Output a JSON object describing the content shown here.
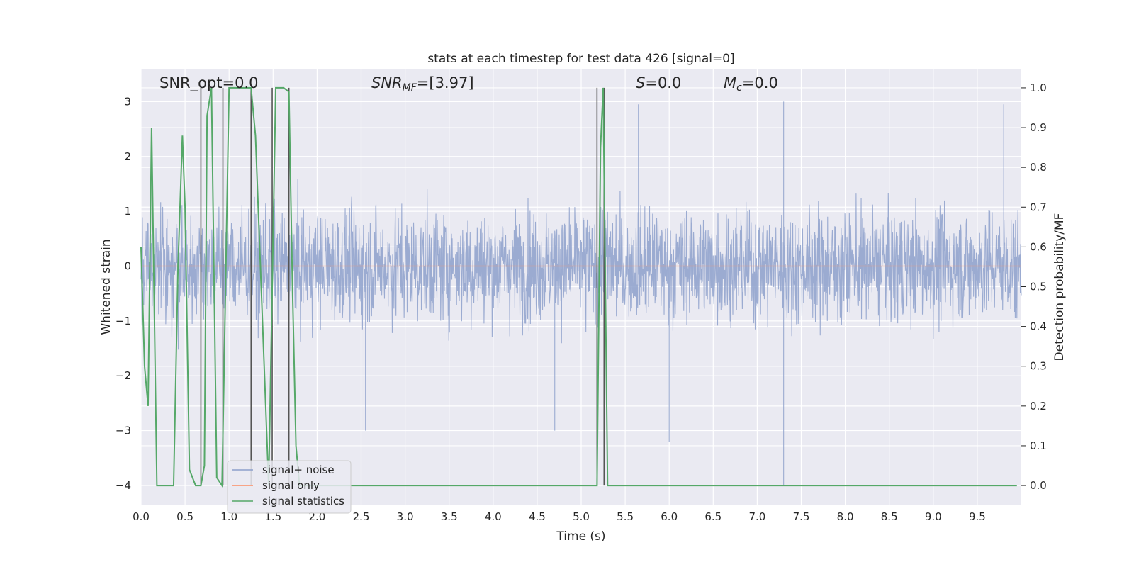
{
  "chart_data": {
    "type": "line",
    "title": "stats at each timestep for test data 426 [signal=0]",
    "xlabel": "Time (s)",
    "ylabel": "Whitened strain",
    "y2label": "Detection probability/MF",
    "xlim": [
      0.0,
      10.0
    ],
    "ylim": [
      -4.35,
      3.6
    ],
    "y2lim": [
      -0.048,
      1.048
    ],
    "xticks": [
      "0.0",
      "0.5",
      "1.0",
      "1.5",
      "2.0",
      "2.5",
      "3.0",
      "3.5",
      "4.0",
      "4.5",
      "5.0",
      "5.5",
      "6.0",
      "6.5",
      "7.0",
      "7.5",
      "8.0",
      "8.5",
      "9.0",
      "9.5"
    ],
    "yticks": [
      "−4",
      "−3",
      "−2",
      "−1",
      "0",
      "1",
      "2",
      "3"
    ],
    "y2ticks": [
      "0.0",
      "0.1",
      "0.2",
      "0.3",
      "0.4",
      "0.5",
      "0.6",
      "0.7",
      "0.8",
      "0.9",
      "1.0"
    ],
    "grid": true,
    "legend_position": "lower-left",
    "annotations": {
      "snr_opt": "SNR_opt=0.0",
      "snr_mf_main": "SNR",
      "snr_mf_sub": "MF",
      "snr_mf_rest": "=[3.97]",
      "s_main": "S",
      "s_rest": "=0.0",
      "mc_main": "M",
      "mc_sub": "c",
      "mc_rest": "=0.0"
    },
    "series": [
      {
        "name": "signal+ noise",
        "color": "#8da0cb",
        "description": "dense whitened noise trace, roughly within ±2 with spikes to about ±3",
        "noise_envelope": [
          -2.0,
          2.0
        ],
        "spikes": [
          {
            "x": 7.3,
            "y": -4.0
          },
          {
            "x": 5.65,
            "y": 2.95
          },
          {
            "x": 6.0,
            "y": -3.2
          },
          {
            "x": 7.3,
            "y": 3.0
          },
          {
            "x": 9.8,
            "y": 2.95
          },
          {
            "x": 2.55,
            "y": -3.0
          },
          {
            "x": 4.7,
            "y": -3.0
          }
        ]
      },
      {
        "name": "signal only",
        "color": "#fc8d62",
        "x": [
          0.0,
          10.0
        ],
        "y": [
          0.0,
          0.0
        ]
      },
      {
        "name": "signal statistics",
        "color": "#55a868",
        "axis": "right",
        "x": [
          0.0,
          0.04,
          0.08,
          0.12,
          0.18,
          0.25,
          0.3,
          0.37,
          0.42,
          0.47,
          0.5,
          0.55,
          0.62,
          0.68,
          0.72,
          0.75,
          0.8,
          0.86,
          0.92,
          1.0,
          1.25,
          1.3,
          1.45,
          1.53,
          1.62,
          1.68,
          1.72,
          1.76,
          1.8,
          5.12,
          5.18,
          5.22,
          5.25,
          5.3,
          5.33,
          9.95
        ],
        "y": [
          0.6,
          0.3,
          0.2,
          0.9,
          0.0,
          0.0,
          0.0,
          0.0,
          0.55,
          0.88,
          0.7,
          0.04,
          0.0,
          0.0,
          0.05,
          0.93,
          1.0,
          0.02,
          0.0,
          1.0,
          1.0,
          0.88,
          0.0,
          1.0,
          1.0,
          0.99,
          0.5,
          0.1,
          0.0,
          0.0,
          0.0,
          0.85,
          1.0,
          0.0,
          0.0,
          0.0
        ]
      }
    ],
    "vertical_lines": {
      "color": "#555555",
      "x": [
        0.68,
        0.93,
        1.25,
        1.49,
        1.68,
        5.18,
        5.26
      ],
      "y_top": 1.0,
      "y_bottom": 0.0
    }
  }
}
